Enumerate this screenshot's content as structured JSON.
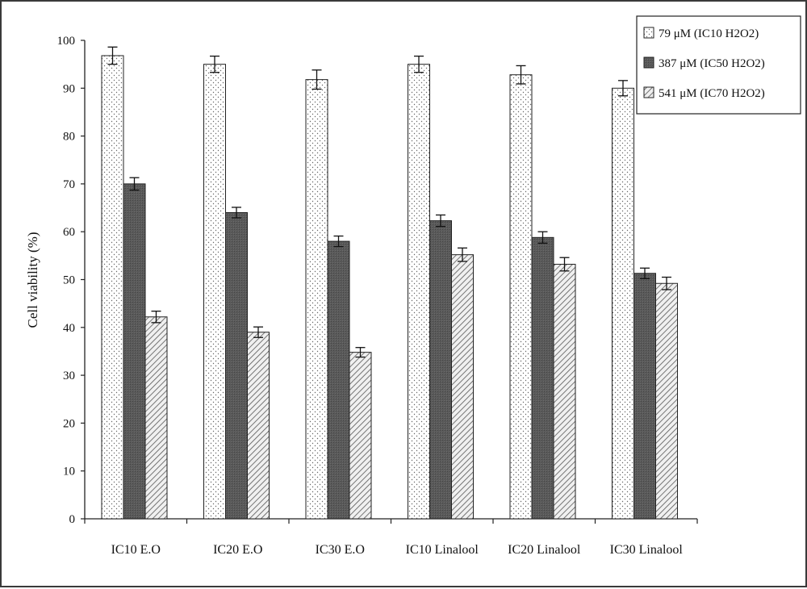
{
  "chart_data": {
    "type": "bar",
    "ylabel": "Cell viability (%)",
    "xlabel": "",
    "ylim": [
      0,
      100
    ],
    "yticks": [
      0,
      10,
      20,
      30,
      40,
      50,
      60,
      70,
      80,
      90,
      100
    ],
    "grid": false,
    "legend_position": "top-right",
    "categories": [
      "IC10 E.O",
      "IC20 E.O",
      "IC30 E.O",
      "IC10 Linalool",
      "IC20 Linalool",
      "IC30 Linalool"
    ],
    "series": [
      {
        "name": "79 μM (IC10 H2O2)",
        "values": [
          96.8,
          95.0,
          91.8,
          95.0,
          92.8,
          90.0
        ],
        "errors": [
          1.8,
          1.7,
          2.0,
          1.7,
          1.9,
          1.6
        ],
        "pattern": "dots"
      },
      {
        "name": "387 μM (IC50 H2O2)",
        "values": [
          70.0,
          64.0,
          58.0,
          62.3,
          58.8,
          51.3
        ],
        "errors": [
          1.3,
          1.1,
          1.1,
          1.2,
          1.2,
          1.1
        ],
        "pattern": "dark"
      },
      {
        "name": "541 μM (IC70 H2O2)",
        "values": [
          42.2,
          39.0,
          34.8,
          55.2,
          53.2,
          49.2
        ],
        "errors": [
          1.2,
          1.1,
          1.0,
          1.4,
          1.4,
          1.3
        ],
        "pattern": "hatch"
      }
    ]
  }
}
